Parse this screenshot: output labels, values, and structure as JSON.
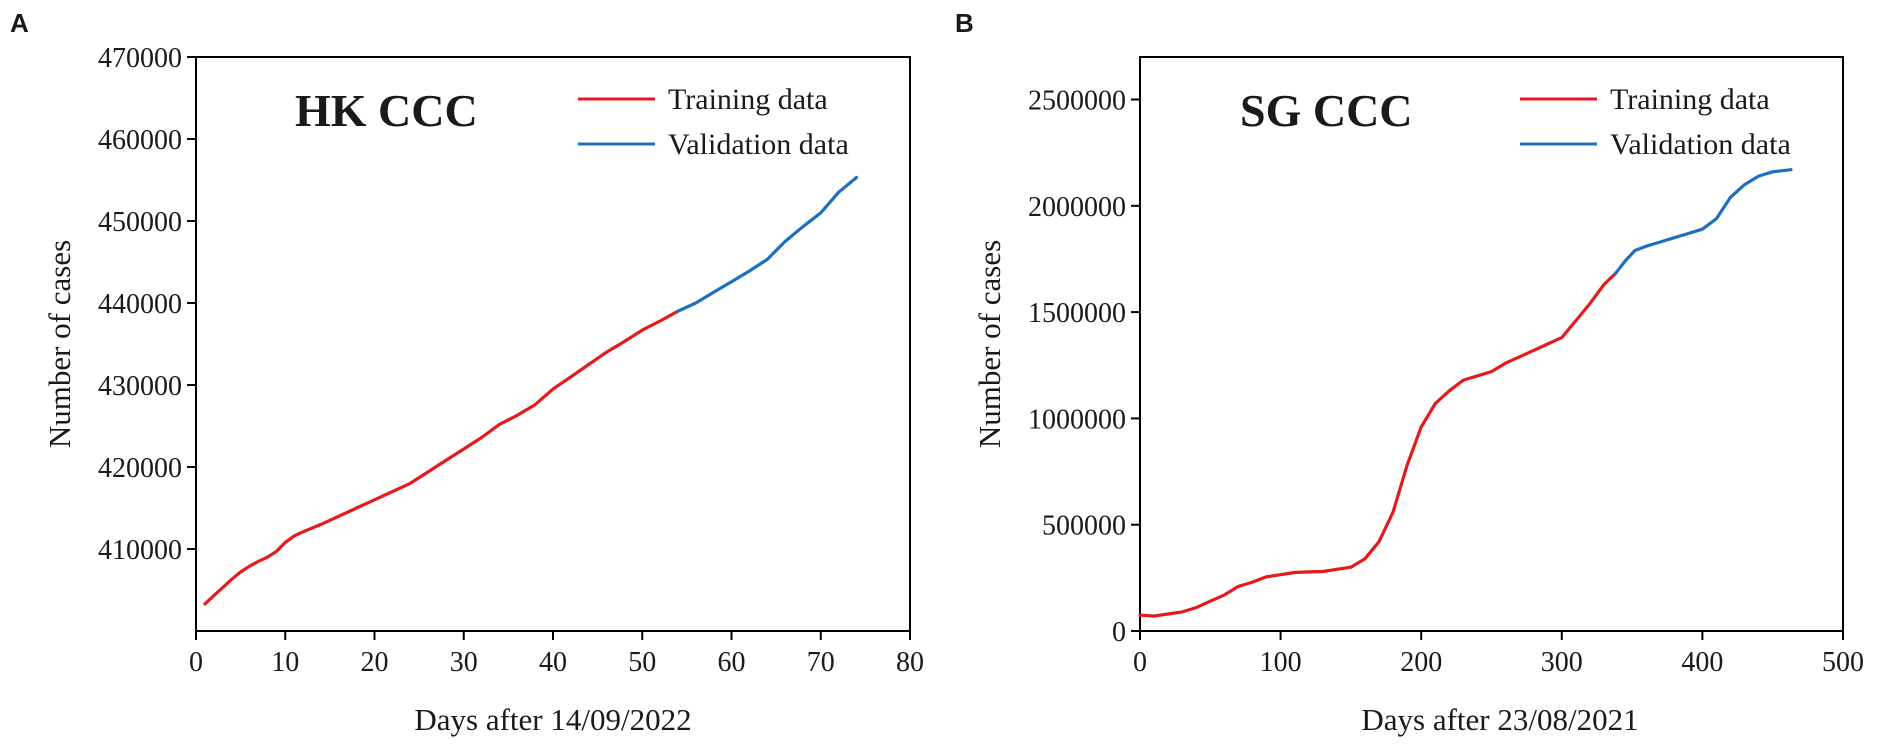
{
  "figure": {
    "panel_labels": [
      "A",
      "B"
    ]
  },
  "chart_data": [
    {
      "panel": "A",
      "type": "line",
      "title": "HK CCC",
      "xlabel": "Days after 14/09/2022",
      "ylabel": "Number of cases",
      "xlim": [
        0,
        80
      ],
      "ylim": [
        400000,
        470000
      ],
      "x_ticks": [
        0,
        10,
        20,
        30,
        40,
        50,
        60,
        70,
        80
      ],
      "y_ticks": [
        410000,
        420000,
        430000,
        440000,
        450000,
        460000,
        470000
      ],
      "legend_position": "top-right",
      "series": [
        {
          "name": "Training data",
          "color": "#e41a1c",
          "x": [
            1,
            2,
            3,
            4,
            5,
            6,
            7,
            8,
            9,
            10,
            11,
            12,
            14,
            16,
            18,
            20,
            22,
            24,
            26,
            28,
            30,
            32,
            34,
            36,
            38,
            40,
            42,
            44,
            46,
            48,
            50,
            52,
            54
          ],
          "y": [
            403300,
            404300,
            405300,
            406300,
            407200,
            407900,
            408500,
            409000,
            409700,
            410800,
            411600,
            412100,
            413000,
            414000,
            415000,
            416000,
            417000,
            418000,
            419400,
            420800,
            422200,
            423600,
            425200,
            426300,
            427600,
            429500,
            431000,
            432500,
            434000,
            435300,
            436700,
            437800,
            439000
          ]
        },
        {
          "name": "Validation data",
          "color": "#1f6fbf",
          "x": [
            54,
            56,
            58,
            60,
            62,
            64,
            66,
            68,
            70,
            72,
            74
          ],
          "y": [
            439000,
            440000,
            441300,
            442600,
            443900,
            445300,
            447500,
            449300,
            451000,
            453500,
            455300
          ]
        }
      ]
    },
    {
      "panel": "B",
      "type": "line",
      "title": "SG CCC",
      "xlabel": "Days after 23/08/2021",
      "ylabel": "Number of cases",
      "xlim": [
        0,
        500
      ],
      "ylim": [
        0,
        2700000
      ],
      "x_ticks": [
        0,
        100,
        200,
        300,
        400,
        500
      ],
      "y_ticks": [
        0,
        500000,
        1000000,
        1500000,
        2000000,
        2500000
      ],
      "legend_position": "top-right",
      "series": [
        {
          "name": "Training data",
          "color": "#e41a1c",
          "x": [
            0,
            10,
            20,
            30,
            40,
            50,
            60,
            70,
            80,
            90,
            100,
            110,
            120,
            130,
            140,
            150,
            160,
            170,
            180,
            190,
            200,
            210,
            220,
            230,
            240,
            250,
            260,
            270,
            280,
            290,
            300,
            310,
            320,
            330,
            338
          ],
          "y": [
            75000,
            70000,
            80000,
            90000,
            110000,
            140000,
            170000,
            210000,
            230000,
            255000,
            265000,
            275000,
            278000,
            280000,
            290000,
            300000,
            340000,
            420000,
            560000,
            780000,
            960000,
            1070000,
            1130000,
            1180000,
            1200000,
            1220000,
            1260000,
            1290000,
            1320000,
            1350000,
            1380000,
            1460000,
            1540000,
            1630000,
            1680000
          ]
        },
        {
          "name": "Validation data",
          "color": "#1f6fbf",
          "x": [
            338,
            345,
            352,
            360,
            370,
            380,
            390,
            400,
            410,
            420,
            430,
            440,
            450,
            463
          ],
          "y": [
            1680000,
            1740000,
            1790000,
            1810000,
            1830000,
            1850000,
            1870000,
            1890000,
            1940000,
            2040000,
            2100000,
            2140000,
            2160000,
            2170000
          ]
        }
      ]
    }
  ]
}
